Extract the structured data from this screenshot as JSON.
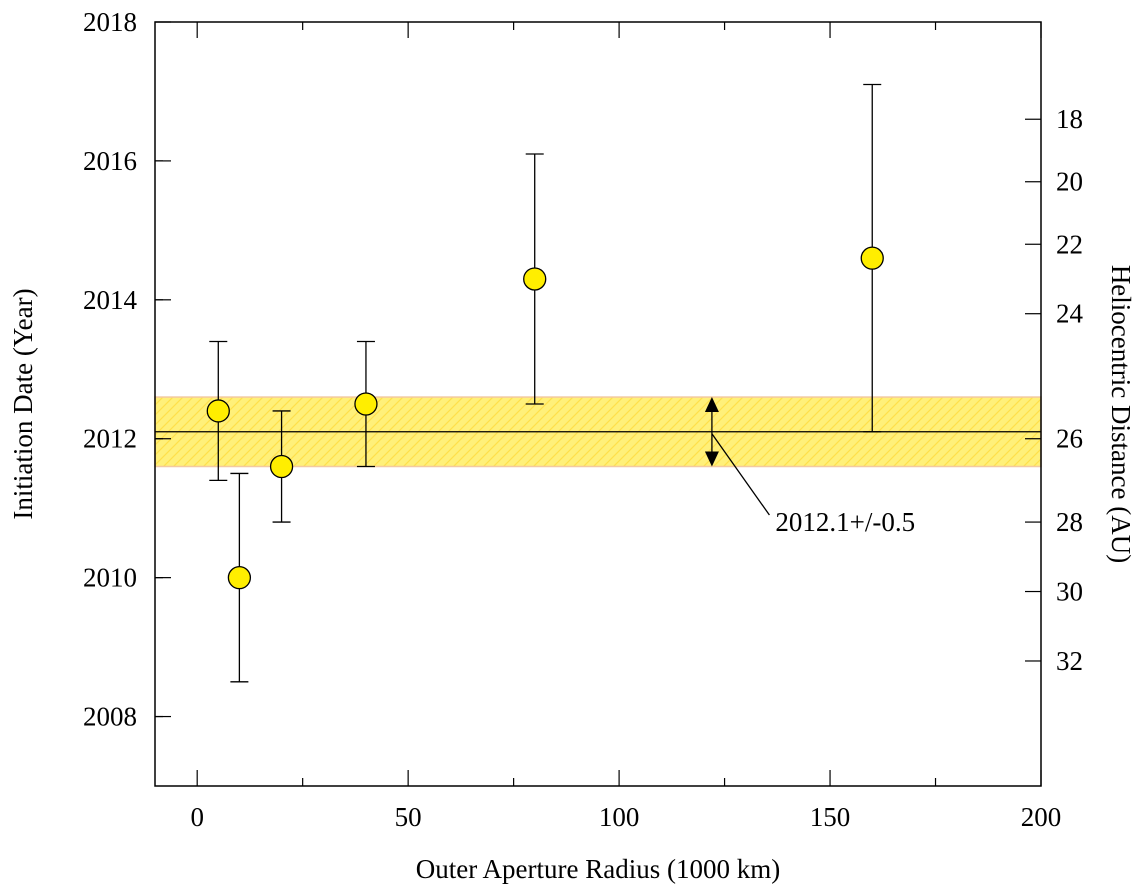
{
  "chart_data": {
    "type": "scatter",
    "xlabel": "Outer Aperture Radius (1000 km)",
    "ylabel": "Initiation Date (Year)",
    "y2label": "Heliocentric Distance (AU)",
    "xlim": [
      -10,
      200
    ],
    "ylim": [
      2007,
      2018
    ],
    "x_ticks": [
      0,
      50,
      100,
      150,
      200
    ],
    "y_ticks": [
      2008,
      2010,
      2012,
      2014,
      2016,
      2018
    ],
    "y2_ticks": [
      {
        "label": "18",
        "year": 2016.6
      },
      {
        "label": "20",
        "year": 2015.7
      },
      {
        "label": "22",
        "year": 2014.8
      },
      {
        "label": "24",
        "year": 2013.8
      },
      {
        "label": "26",
        "year": 2012.0
      },
      {
        "label": "28",
        "year": 2010.8
      },
      {
        "label": "30",
        "year": 2009.8
      },
      {
        "label": "32",
        "year": 2008.8
      }
    ],
    "series": [
      {
        "points": [
          {
            "x": 5,
            "y": 2012.4,
            "ylow": 2011.4,
            "yhigh": 2013.4
          },
          {
            "x": 10,
            "y": 2010.0,
            "ylow": 2008.5,
            "yhigh": 2011.5
          },
          {
            "x": 20,
            "y": 2011.6,
            "ylow": 2010.8,
            "yhigh": 2012.4
          },
          {
            "x": 40,
            "y": 2012.5,
            "ylow": 2011.6,
            "yhigh": 2013.4
          },
          {
            "x": 80,
            "y": 2014.3,
            "ylow": 2012.5,
            "yhigh": 2016.1
          },
          {
            "x": 160,
            "y": 2014.6,
            "ylow": 2012.1,
            "yhigh": 2017.1
          }
        ]
      }
    ],
    "band": {
      "center": 2012.1,
      "low": 2011.6,
      "high": 2012.6,
      "color": "#fff07a"
    },
    "annotation": {
      "text": "2012.1+/-0.5",
      "arrow_x": 122,
      "text_x": 138,
      "text_y": 2010.7
    },
    "marker_color": "#ffee00",
    "grid": false
  }
}
